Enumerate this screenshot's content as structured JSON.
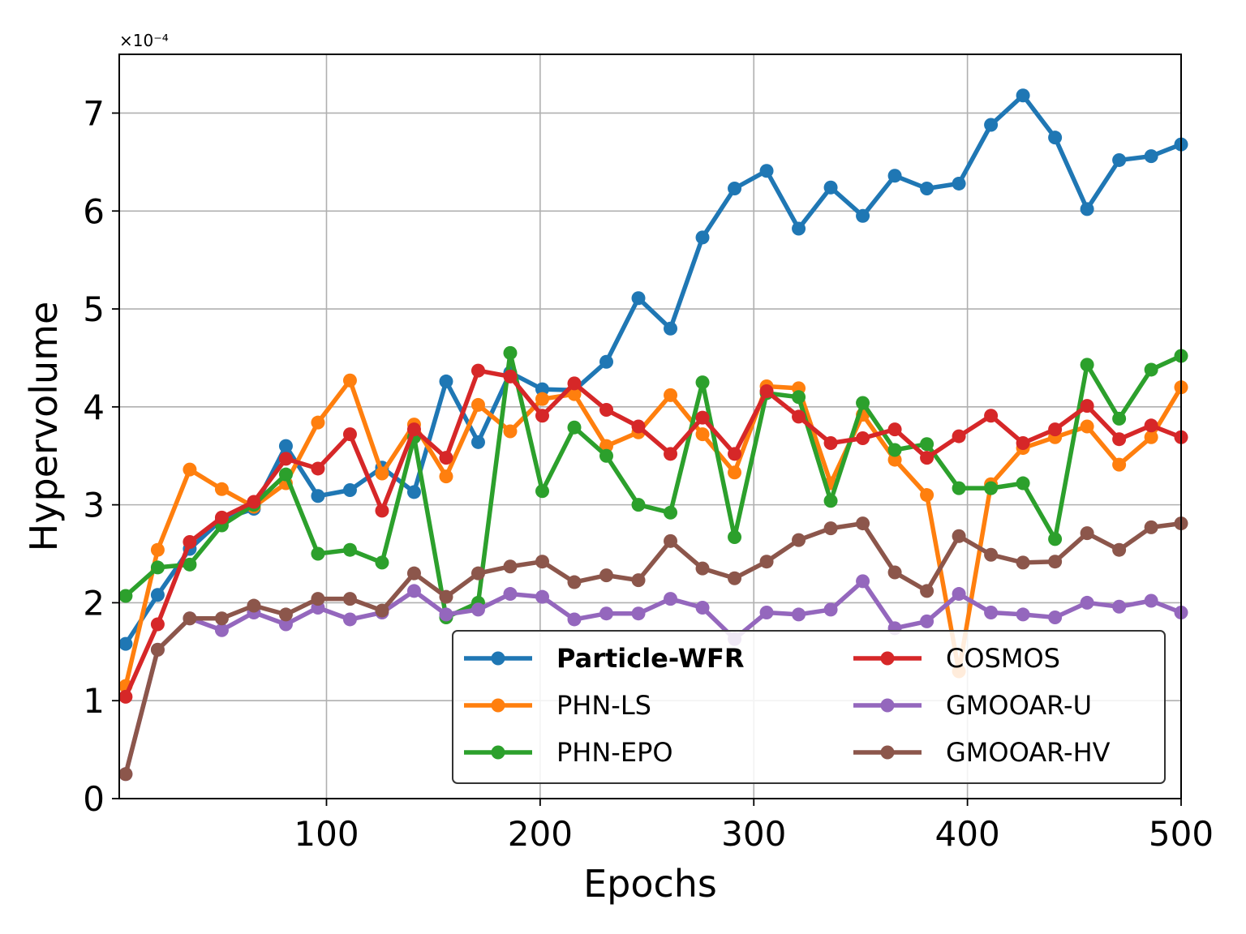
{
  "chart_data": {
    "type": "line",
    "xlabel": "Epochs",
    "ylabel": "Hypervolume",
    "y_scale_label": "×10⁻⁴",
    "xlim": [
      3,
      500
    ],
    "ylim": [
      0,
      7.6
    ],
    "x_ticks": [
      100,
      200,
      300,
      400,
      500
    ],
    "y_ticks": [
      0,
      1,
      2,
      3,
      4,
      5,
      6,
      7
    ],
    "grid": true,
    "legend_position": "lower-right",
    "legend_columns": 2,
    "x": [
      6,
      21,
      36,
      51,
      66,
      81,
      96,
      111,
      126,
      141,
      156,
      171,
      186,
      201,
      216,
      231,
      246,
      261,
      276,
      291,
      306,
      321,
      336,
      351,
      366,
      381,
      396,
      411,
      426,
      441,
      456,
      471,
      486,
      500
    ],
    "series": [
      {
        "name": "Particle-WFR",
        "color": "#1f77b4",
        "bold": true,
        "values": [
          1.58,
          2.08,
          2.55,
          2.85,
          2.96,
          3.6,
          3.09,
          3.15,
          3.38,
          3.13,
          4.26,
          3.64,
          4.35,
          4.18,
          4.17,
          4.46,
          5.11,
          4.8,
          5.73,
          6.23,
          6.41,
          5.82,
          6.24,
          5.95,
          6.36,
          6.23,
          6.28,
          6.88,
          7.18,
          6.75,
          6.02,
          6.52,
          6.56,
          6.68
        ]
      },
      {
        "name": "PHN-LS",
        "color": "#ff7f0e",
        "bold": false,
        "values": [
          1.15,
          2.54,
          3.36,
          3.16,
          2.98,
          3.22,
          3.84,
          4.27,
          3.32,
          3.82,
          3.29,
          4.02,
          3.75,
          4.08,
          4.13,
          3.6,
          3.74,
          4.12,
          3.72,
          3.33,
          4.21,
          4.19,
          3.22,
          3.92,
          3.46,
          3.1,
          1.3,
          3.21,
          3.58,
          3.69,
          3.8,
          3.41,
          3.69,
          4.2
        ]
      },
      {
        "name": "PHN-EPO",
        "color": "#2ca02c",
        "bold": false,
        "values": [
          2.07,
          2.36,
          2.39,
          2.79,
          3.0,
          3.31,
          2.5,
          2.54,
          2.41,
          3.69,
          1.85,
          2.0,
          4.55,
          3.14,
          3.79,
          3.5,
          3.0,
          2.92,
          4.25,
          2.67,
          4.14,
          4.1,
          3.04,
          4.04,
          3.56,
          3.62,
          3.17,
          3.17,
          3.22,
          2.65,
          4.43,
          3.88,
          4.38,
          4.52
        ]
      },
      {
        "name": "COSMOS",
        "color": "#d62728",
        "bold": false,
        "values": [
          1.04,
          1.78,
          2.62,
          2.87,
          3.03,
          3.47,
          3.37,
          3.72,
          2.94,
          3.77,
          3.48,
          4.37,
          4.31,
          3.91,
          4.24,
          3.97,
          3.8,
          3.52,
          3.89,
          3.52,
          4.16,
          3.9,
          3.63,
          3.68,
          3.77,
          3.48,
          3.7,
          3.91,
          3.63,
          3.77,
          4.01,
          3.67,
          3.81,
          3.69
        ]
      },
      {
        "name": "GMOOAR-U",
        "color": "#9467bd",
        "bold": false,
        "values": [
          0.25,
          1.52,
          1.84,
          1.72,
          1.9,
          1.78,
          1.95,
          1.83,
          1.9,
          2.12,
          1.88,
          1.93,
          2.09,
          2.06,
          1.83,
          1.89,
          1.89,
          2.04,
          1.95,
          1.63,
          1.9,
          1.88,
          1.93,
          2.22,
          1.74,
          1.81,
          2.09,
          1.9,
          1.88,
          1.85,
          2.0,
          1.96,
          2.02,
          1.9
        ]
      },
      {
        "name": "GMOOAR-HV",
        "color": "#8c564b",
        "bold": false,
        "values": [
          0.25,
          1.52,
          1.84,
          1.84,
          1.97,
          1.88,
          2.04,
          2.04,
          1.92,
          2.3,
          2.06,
          2.3,
          2.37,
          2.42,
          2.21,
          2.28,
          2.23,
          2.63,
          2.35,
          2.25,
          2.42,
          2.64,
          2.76,
          2.81,
          2.31,
          2.12,
          2.68,
          2.49,
          2.41,
          2.42,
          2.71,
          2.54,
          2.77,
          2.81
        ]
      }
    ]
  }
}
